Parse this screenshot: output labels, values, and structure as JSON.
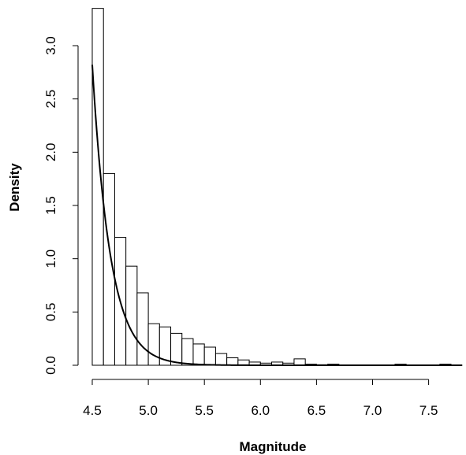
{
  "chart_data": {
    "type": "bar",
    "subtype": "histogram-with-density-curve",
    "title": "",
    "xlabel": "Magnitude",
    "ylabel": "Density",
    "xlim": [
      4.5,
      7.8
    ],
    "ylim": [
      0,
      3.2
    ],
    "bin_width": 0.1,
    "bins": [
      {
        "x0": 4.5,
        "x1": 4.6,
        "density": 3.35
      },
      {
        "x0": 4.6,
        "x1": 4.7,
        "density": 1.8
      },
      {
        "x0": 4.7,
        "x1": 4.8,
        "density": 1.2
      },
      {
        "x0": 4.8,
        "x1": 4.9,
        "density": 0.93
      },
      {
        "x0": 4.9,
        "x1": 5.0,
        "density": 0.68
      },
      {
        "x0": 5.0,
        "x1": 5.1,
        "density": 0.39
      },
      {
        "x0": 5.1,
        "x1": 5.2,
        "density": 0.36
      },
      {
        "x0": 5.2,
        "x1": 5.3,
        "density": 0.3
      },
      {
        "x0": 5.3,
        "x1": 5.4,
        "density": 0.25
      },
      {
        "x0": 5.4,
        "x1": 5.5,
        "density": 0.2
      },
      {
        "x0": 5.5,
        "x1": 5.6,
        "density": 0.17
      },
      {
        "x0": 5.6,
        "x1": 5.7,
        "density": 0.11
      },
      {
        "x0": 5.7,
        "x1": 5.8,
        "density": 0.07
      },
      {
        "x0": 5.8,
        "x1": 5.9,
        "density": 0.05
      },
      {
        "x0": 5.9,
        "x1": 6.0,
        "density": 0.03
      },
      {
        "x0": 6.0,
        "x1": 6.1,
        "density": 0.02
      },
      {
        "x0": 6.1,
        "x1": 6.2,
        "density": 0.03
      },
      {
        "x0": 6.2,
        "x1": 6.3,
        "density": 0.02
      },
      {
        "x0": 6.3,
        "x1": 6.4,
        "density": 0.06
      },
      {
        "x0": 6.4,
        "x1": 6.5,
        "density": 0.01
      },
      {
        "x0": 6.5,
        "x1": 6.6,
        "density": 0.005
      },
      {
        "x0": 6.6,
        "x1": 6.7,
        "density": 0.01
      },
      {
        "x0": 7.2,
        "x1": 7.3,
        "density": 0.01
      },
      {
        "x0": 7.6,
        "x1": 7.7,
        "density": 0.01
      }
    ],
    "density_curve": {
      "form": "exponential",
      "x_start": 4.5,
      "y_at_start": 2.82,
      "rate": 6.2
    },
    "x_ticks": [
      4.5,
      5.0,
      5.5,
      6.0,
      6.5,
      7.0,
      7.5
    ],
    "x_tick_labels": [
      "4.5",
      "5.0",
      "5.5",
      "6.0",
      "6.5",
      "7.0",
      "7.5"
    ],
    "y_ticks": [
      0.0,
      0.5,
      1.0,
      1.5,
      2.0,
      2.5,
      3.0
    ],
    "y_tick_labels": [
      "0.0",
      "0.5",
      "1.0",
      "1.5",
      "2.0",
      "2.5",
      "3.0"
    ],
    "grid": false,
    "legend": "none",
    "colors": {
      "bar_fill": "#ffffff",
      "stroke": "#000000"
    }
  }
}
